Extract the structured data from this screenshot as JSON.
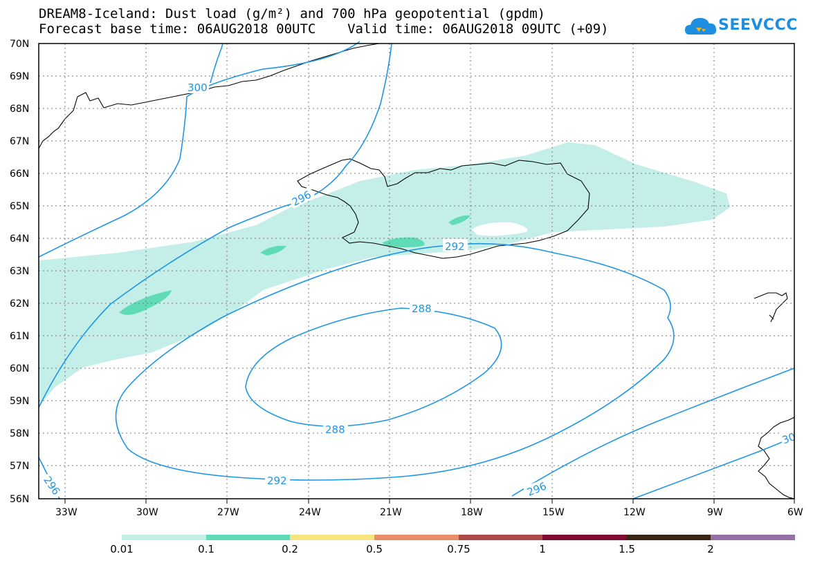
{
  "title": {
    "line1": "DREAM8-Iceland: Dust load (g/m²) and 700 hPa geopotential (gpdm)",
    "line2": "Forecast base time: 06AUG2018 00UTC    Valid time: 06AUG2018 09UTC (+09)"
  },
  "logo": {
    "text": "SEEVCCC",
    "icon": "cloud-icon",
    "color": "#1e8fe0"
  },
  "axes": {
    "lat_labels": [
      "70N",
      "69N",
      "68N",
      "67N",
      "66N",
      "65N",
      "64N",
      "63N",
      "62N",
      "61N",
      "60N",
      "59N",
      "58N",
      "57N",
      "56N"
    ],
    "lon_labels": [
      "33W",
      "30W",
      "27W",
      "24W",
      "21W",
      "18W",
      "15W",
      "12W",
      "9W",
      "6W"
    ]
  },
  "contour_labels": [
    "300",
    "296",
    "292",
    "288",
    "288",
    "292",
    "296",
    "296",
    "30"
  ],
  "colorbar": {
    "colors": [
      "#c4efe9",
      "#5fdbb6",
      "#f5e57c",
      "#e88e6a",
      "#a94a46",
      "#7e0a2f",
      "#3a2412",
      "#9470a3"
    ],
    "labels": [
      "0.01",
      "0.1",
      "0.2",
      "0.5",
      "0.75",
      "1",
      "1.5",
      "2"
    ]
  },
  "colors": {
    "contour": "#1e96e6",
    "dust_low": "#c4efe9",
    "dust_mid": "#5fdbb6"
  }
}
